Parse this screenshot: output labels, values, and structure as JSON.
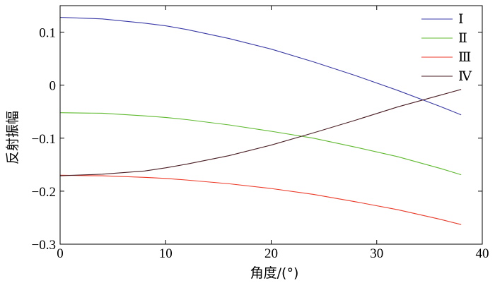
{
  "chart_data": {
    "type": "line",
    "title": "",
    "xlabel": "角度/(°)",
    "ylabel": "反射振幅",
    "xlim": [
      0,
      40
    ],
    "ylim": [
      -0.3,
      0.15
    ],
    "xticks": [
      0,
      10,
      20,
      30,
      40
    ],
    "xtick_labels": [
      "0",
      "10",
      "20",
      "30",
      "40"
    ],
    "yticks": [
      0.1,
      0,
      -0.1,
      -0.2,
      -0.3
    ],
    "ytick_labels": [
      "0.1",
      "0",
      "−0.1",
      "−0.2",
      "−0.3"
    ],
    "grid": false,
    "legend_position": "top-right",
    "series": [
      {
        "name": "Ⅰ",
        "color": "#3a3aa8",
        "x": [
          0,
          4,
          8,
          10,
          12,
          16,
          20,
          24,
          28,
          32,
          36,
          38
        ],
        "y": [
          0.128,
          0.125,
          0.117,
          0.112,
          0.105,
          0.088,
          0.068,
          0.044,
          0.018,
          -0.01,
          -0.04,
          -0.056
        ]
      },
      {
        "name": "Ⅱ",
        "color": "#5fba2f",
        "x": [
          0,
          4,
          8,
          10,
          12,
          16,
          20,
          24,
          28,
          32,
          36,
          38
        ],
        "y": [
          -0.052,
          -0.053,
          -0.058,
          -0.061,
          -0.065,
          -0.075,
          -0.087,
          -0.1,
          -0.117,
          -0.135,
          -0.157,
          -0.169
        ]
      },
      {
        "name": "Ⅲ",
        "color": "#ee3a28",
        "x": [
          0,
          4,
          8,
          10,
          12,
          16,
          20,
          24,
          28,
          32,
          36,
          38
        ],
        "y": [
          -0.17,
          -0.171,
          -0.174,
          -0.176,
          -0.179,
          -0.186,
          -0.195,
          -0.206,
          -0.22,
          -0.235,
          -0.253,
          -0.263
        ]
      },
      {
        "name": "Ⅳ",
        "color": "#4a1e24",
        "x": [
          0,
          4,
          8,
          10,
          12,
          16,
          20,
          24,
          28,
          32,
          36,
          38
        ],
        "y": [
          -0.171,
          -0.168,
          -0.162,
          -0.156,
          -0.149,
          -0.133,
          -0.113,
          -0.09,
          -0.066,
          -0.041,
          -0.019,
          -0.008
        ]
      }
    ]
  }
}
